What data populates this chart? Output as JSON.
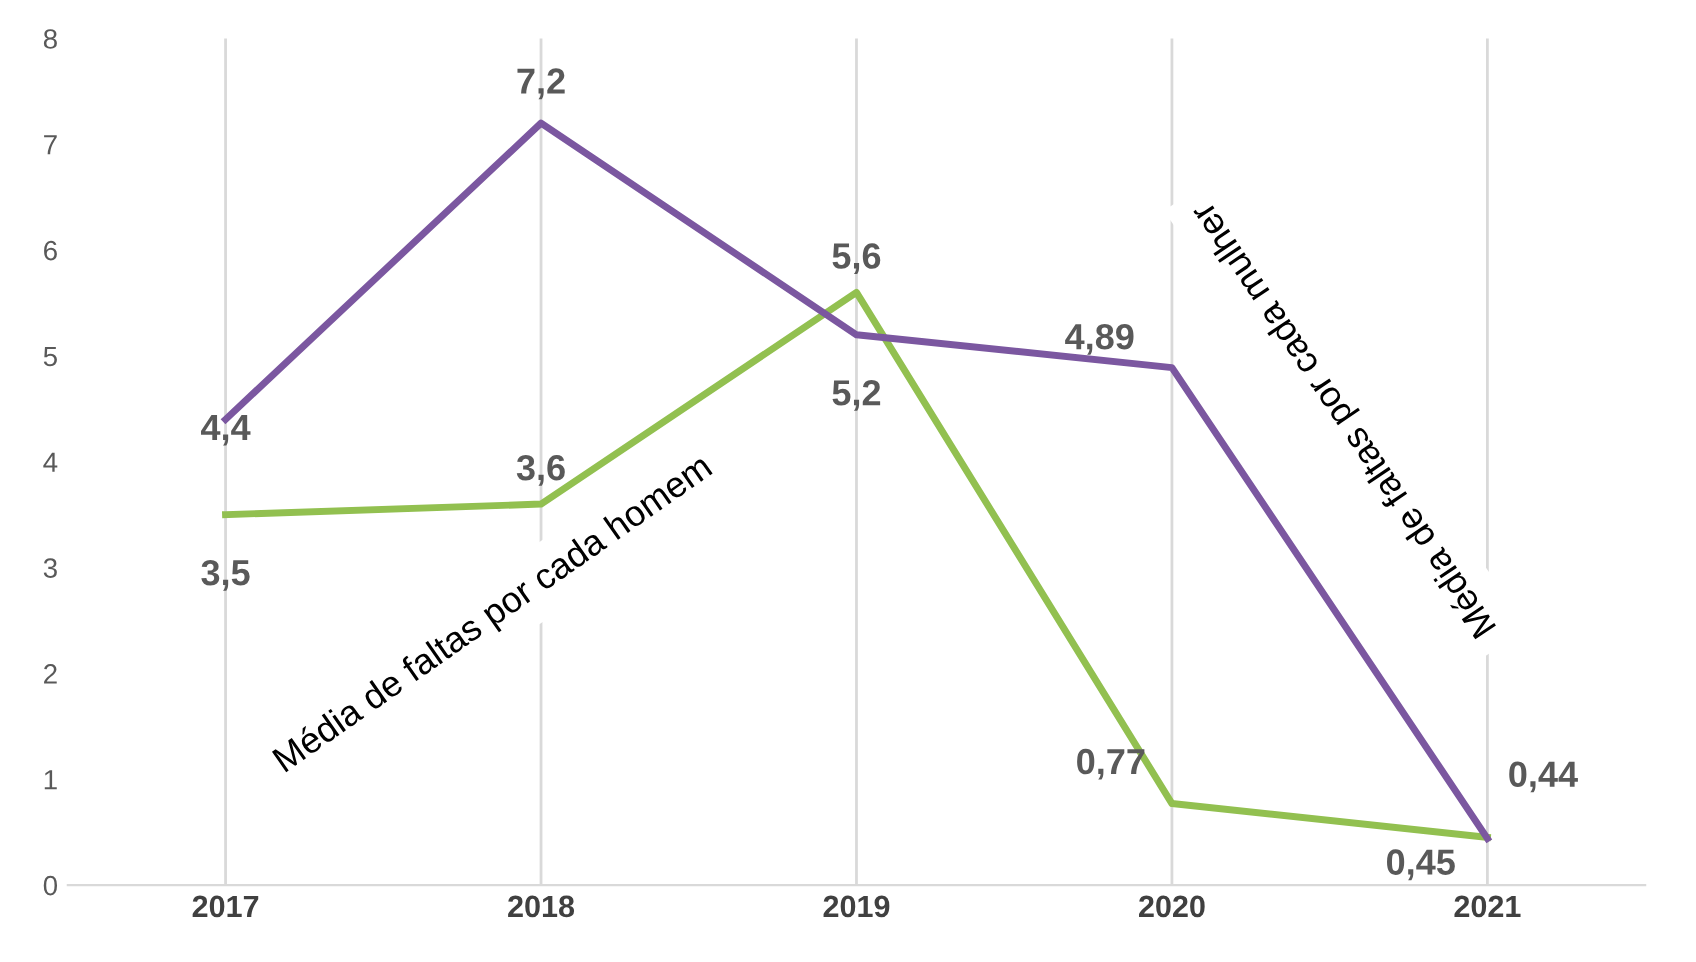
{
  "chart_data": {
    "type": "line",
    "categories": [
      "2017",
      "2018",
      "2019",
      "2020",
      "2021"
    ],
    "series": [
      {
        "name": "Média de faltas por cada homem",
        "color": "#92c050",
        "values": [
          3.5,
          3.6,
          5.6,
          0.77,
          0.45
        ],
        "value_labels": [
          "3,5",
          "3,6",
          "5,6",
          "0,77",
          "0,45"
        ]
      },
      {
        "name": "Média de faltas por cada mulher",
        "color": "#7b57a0",
        "values": [
          4.4,
          7.2,
          5.2,
          4.89,
          0.44
        ],
        "value_labels": [
          "4,4",
          "7,2",
          "5,2",
          "4,89",
          "0,44"
        ]
      }
    ],
    "ylim": [
      0,
      8
    ],
    "yticks": [
      0,
      1,
      2,
      3,
      4,
      5,
      6,
      7,
      8
    ],
    "grid": "x",
    "marker": "none",
    "line_style": "solid",
    "legend": false
  }
}
